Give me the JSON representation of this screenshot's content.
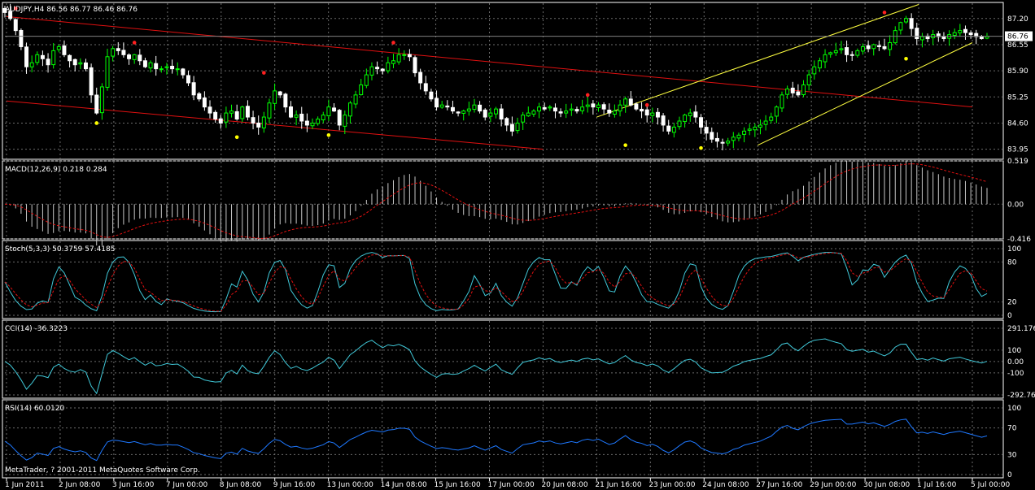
{
  "colors": {
    "background": "#000000",
    "frame": "#ffffff",
    "grid": "#6b6b6b",
    "candle_up_body": "#000000",
    "candle_up_border": "#00ff00",
    "candle_down": "#ffffff",
    "channel_red": "#e01010",
    "channel_yellow": "#ffff40",
    "macd_hist": "#c8c8c8",
    "macd_signal": "#e01010",
    "stoch_main": "#40c8d8",
    "stoch_signal": "#e01010",
    "cci": "#40c8d8",
    "rsi": "#1e78ff",
    "current_price_bg": "#ffffff",
    "current_price_fg": "#000000"
  },
  "panes": {
    "price": {
      "label": "AUDJPY,H4  86.56 86.77 86.46 86.76"
    },
    "macd": {
      "label": "MACD(12,26,9) 0.218 0.284"
    },
    "stoch": {
      "label": "Stoch(5,3,3) 50.3759 57.4185"
    },
    "cci": {
      "label": "CCI(14) -36.3223"
    },
    "rsi": {
      "label": "RSI(14) 60.0120"
    }
  },
  "footer": "MetaTrader, ? 2001-2011 MetaQuotes Software Corp.",
  "chart_data": [
    {
      "type": "candlestick",
      "symbol": "AUDJPY",
      "timeframe": "H4",
      "ylim": [
        83.7,
        87.6
      ],
      "yticks": [
        "87.20",
        "86.55",
        "85.90",
        "85.25",
        "84.60",
        "83.95"
      ],
      "current_price": "86.76",
      "x_ticks": [
        "1 Jun 2011",
        "2 Jun 08:00",
        "3 Jun 16:00",
        "7 Jun 00:00",
        "8 Jun 08:00",
        "9 Jun 16:00",
        "13 Jun 00:00",
        "14 Jun 08:00",
        "15 Jun 16:00",
        "17 Jun 00:00",
        "20 Jun 08:00",
        "21 Jun 16:00",
        "23 Jun 00:00",
        "24 Jun 08:00",
        "27 Jun 16:00",
        "29 Jun 00:00",
        "30 Jun 08:00",
        "1 Jul 16:00",
        "5 Jul 00:00"
      ],
      "close_path": [
        87.35,
        87.2,
        86.9,
        86.5,
        86.0,
        86.1,
        86.3,
        86.2,
        86.05,
        86.4,
        86.5,
        86.3,
        86.15,
        86.05,
        86.1,
        85.95,
        85.3,
        84.85,
        85.5,
        86.25,
        86.45,
        86.4,
        86.3,
        86.2,
        86.3,
        86.15,
        86.0,
        86.1,
        85.95,
        85.95,
        86.0,
        85.95,
        85.95,
        85.8,
        85.6,
        85.3,
        85.2,
        85.0,
        84.85,
        84.7,
        84.6,
        84.85,
        84.9,
        84.7,
        85.0,
        84.75,
        84.6,
        84.5,
        84.75,
        85.1,
        85.4,
        85.3,
        85.0,
        84.75,
        84.8,
        84.65,
        84.55,
        84.6,
        84.7,
        84.8,
        85.0,
        84.9,
        84.55,
        84.8,
        85.1,
        85.3,
        85.55,
        85.8,
        86.0,
        85.95,
        85.9,
        86.1,
        86.15,
        86.3,
        86.3,
        86.25,
        85.85,
        85.6,
        85.4,
        85.2,
        85.0,
        85.05,
        85.0,
        84.9,
        84.85,
        84.9,
        84.95,
        85.05,
        84.9,
        84.75,
        84.85,
        84.95,
        84.7,
        84.55,
        84.4,
        84.6,
        84.8,
        84.85,
        84.9,
        85.0,
        84.95,
        85.0,
        84.9,
        84.85,
        84.9,
        84.95,
        84.9,
        85.0,
        85.05,
        85.0,
        85.05,
        84.95,
        84.85,
        84.9,
        85.05,
        85.2,
        85.05,
        84.95,
        84.9,
        84.8,
        84.85,
        84.75,
        84.55,
        84.4,
        84.5,
        84.65,
        84.8,
        84.85,
        84.75,
        84.5,
        84.35,
        84.2,
        84.15,
        84.1,
        84.15,
        84.25,
        84.3,
        84.4,
        84.45,
        84.5,
        84.55,
        84.65,
        84.75,
        85.0,
        85.3,
        85.45,
        85.35,
        85.3,
        85.55,
        85.8,
        86.0,
        86.15,
        86.3,
        86.35,
        86.4,
        86.45,
        86.3,
        86.3,
        86.4,
        86.5,
        86.45,
        86.55,
        86.5,
        86.45,
        86.6,
        86.9,
        87.1,
        87.2,
        86.95,
        86.7,
        86.75,
        86.7,
        86.8,
        86.75,
        86.7,
        86.8,
        86.85,
        86.9,
        86.85,
        86.8,
        86.75,
        86.7,
        86.76
      ],
      "channels": [
        {
          "color": "red",
          "from": [
            "1 Jun 2011",
            87.25
          ],
          "to": [
            "5 Jul 00:00",
            85.0
          ]
        },
        {
          "color": "red",
          "from": [
            "1 Jun 2011",
            85.15
          ],
          "to": [
            "20 Jun 08:00",
            83.95
          ]
        },
        {
          "color": "yellow",
          "from": [
            "21 Jun 16:00",
            84.75
          ],
          "to": [
            "1 Jul 16:00",
            87.55
          ]
        },
        {
          "color": "yellow",
          "from": [
            "27 Jun 16:00",
            84.05
          ],
          "to": [
            "5 Jul 00:00",
            86.6
          ]
        }
      ]
    },
    {
      "type": "histogram+line",
      "name": "MACD(12,26,9)",
      "yticks": [
        "0.519",
        "0.00",
        "-0.416"
      ],
      "ylim": [
        -0.416,
        0.519
      ],
      "last_values": {
        "macd": 0.218,
        "signal": 0.284
      }
    },
    {
      "type": "line",
      "name": "Stoch(5,3,3)",
      "yticks": [
        "100",
        "80",
        "20",
        "0"
      ],
      "ylim": [
        0,
        100
      ],
      "last_values": {
        "main": 50.3759,
        "signal": 57.4185
      }
    },
    {
      "type": "line",
      "name": "CCI(14)",
      "yticks": [
        "291.176",
        "100",
        "0.00",
        "-100",
        "-292.763"
      ],
      "ylim": [
        -292.763,
        291.176
      ],
      "last_value": -36.3223
    },
    {
      "type": "line",
      "name": "RSI(14)",
      "yticks": [
        "100",
        "70",
        "30",
        "0"
      ],
      "ylim": [
        0,
        100
      ],
      "last_value": 60.012
    }
  ]
}
